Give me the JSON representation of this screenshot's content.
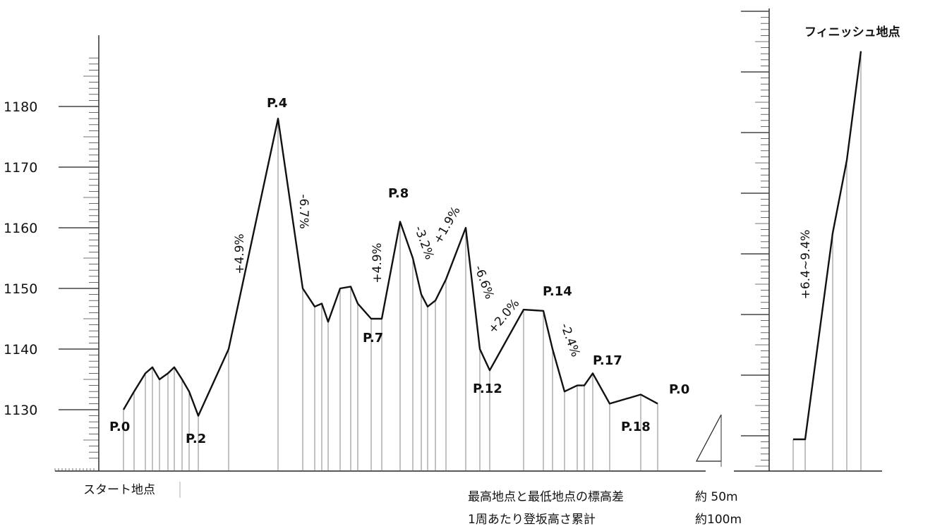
{
  "chart_data": [
    {
      "type": "line",
      "title": "",
      "xlabel": "",
      "ylabel": "",
      "ylim": [
        1122,
        1188
      ],
      "yticks": [
        1130,
        1140,
        1150,
        1160,
        1170,
        1180
      ],
      "grid": false,
      "series": [
        {
          "values": [
            1130,
            1133,
            1136,
            1137,
            1135,
            1136,
            1137,
            1135,
            1133,
            1129,
            1140,
            1178,
            1150,
            1147,
            1147.5,
            1144.5,
            1150,
            1150.3,
            1147.5,
            1145,
            1145,
            1161,
            1155,
            1149,
            1147,
            1148,
            1151.5,
            1160,
            1140,
            1136.5,
            1146.5,
            1146.3,
            1140,
            1133,
            1134,
            1134,
            1136,
            1131,
            1132.5,
            1131
          ]
        }
      ],
      "point_labels": [
        {
          "text": "P.0",
          "index": 0
        },
        {
          "text": "P.2",
          "index": 9
        },
        {
          "text": "P.4",
          "index": 11
        },
        {
          "text": "P.7",
          "index": 19
        },
        {
          "text": "P.8",
          "index": 21
        },
        {
          "text": "P.12",
          "index": 29
        },
        {
          "text": "P.14",
          "index": 31
        },
        {
          "text": "P.17",
          "index": 36
        },
        {
          "text": "P.18",
          "index": 37
        },
        {
          "text": "P.0",
          "index": 39
        }
      ],
      "grade_labels": [
        "+4.9%",
        "-6.7%",
        "+4.9%",
        "-3.2%",
        "+1.9%",
        "-6.6%",
        "+2.0%",
        "-2.4%"
      ],
      "start_label": "スタート地点"
    },
    {
      "type": "line",
      "title": "",
      "xlabel": "",
      "ylabel": "",
      "grid": false,
      "series": [
        {
          "values": [
            1126,
            1126,
            1160,
            1172,
            1190
          ]
        }
      ],
      "grade_labels": [
        "+6.4~9.4%"
      ],
      "finish_label": "フィニッシュ地点"
    }
  ],
  "notes": [
    {
      "label": "最高地点と最低地点の標高差",
      "value": "約 50m"
    },
    {
      "label": "1周あたり登坂高さ累計",
      "value": "約100m"
    }
  ]
}
